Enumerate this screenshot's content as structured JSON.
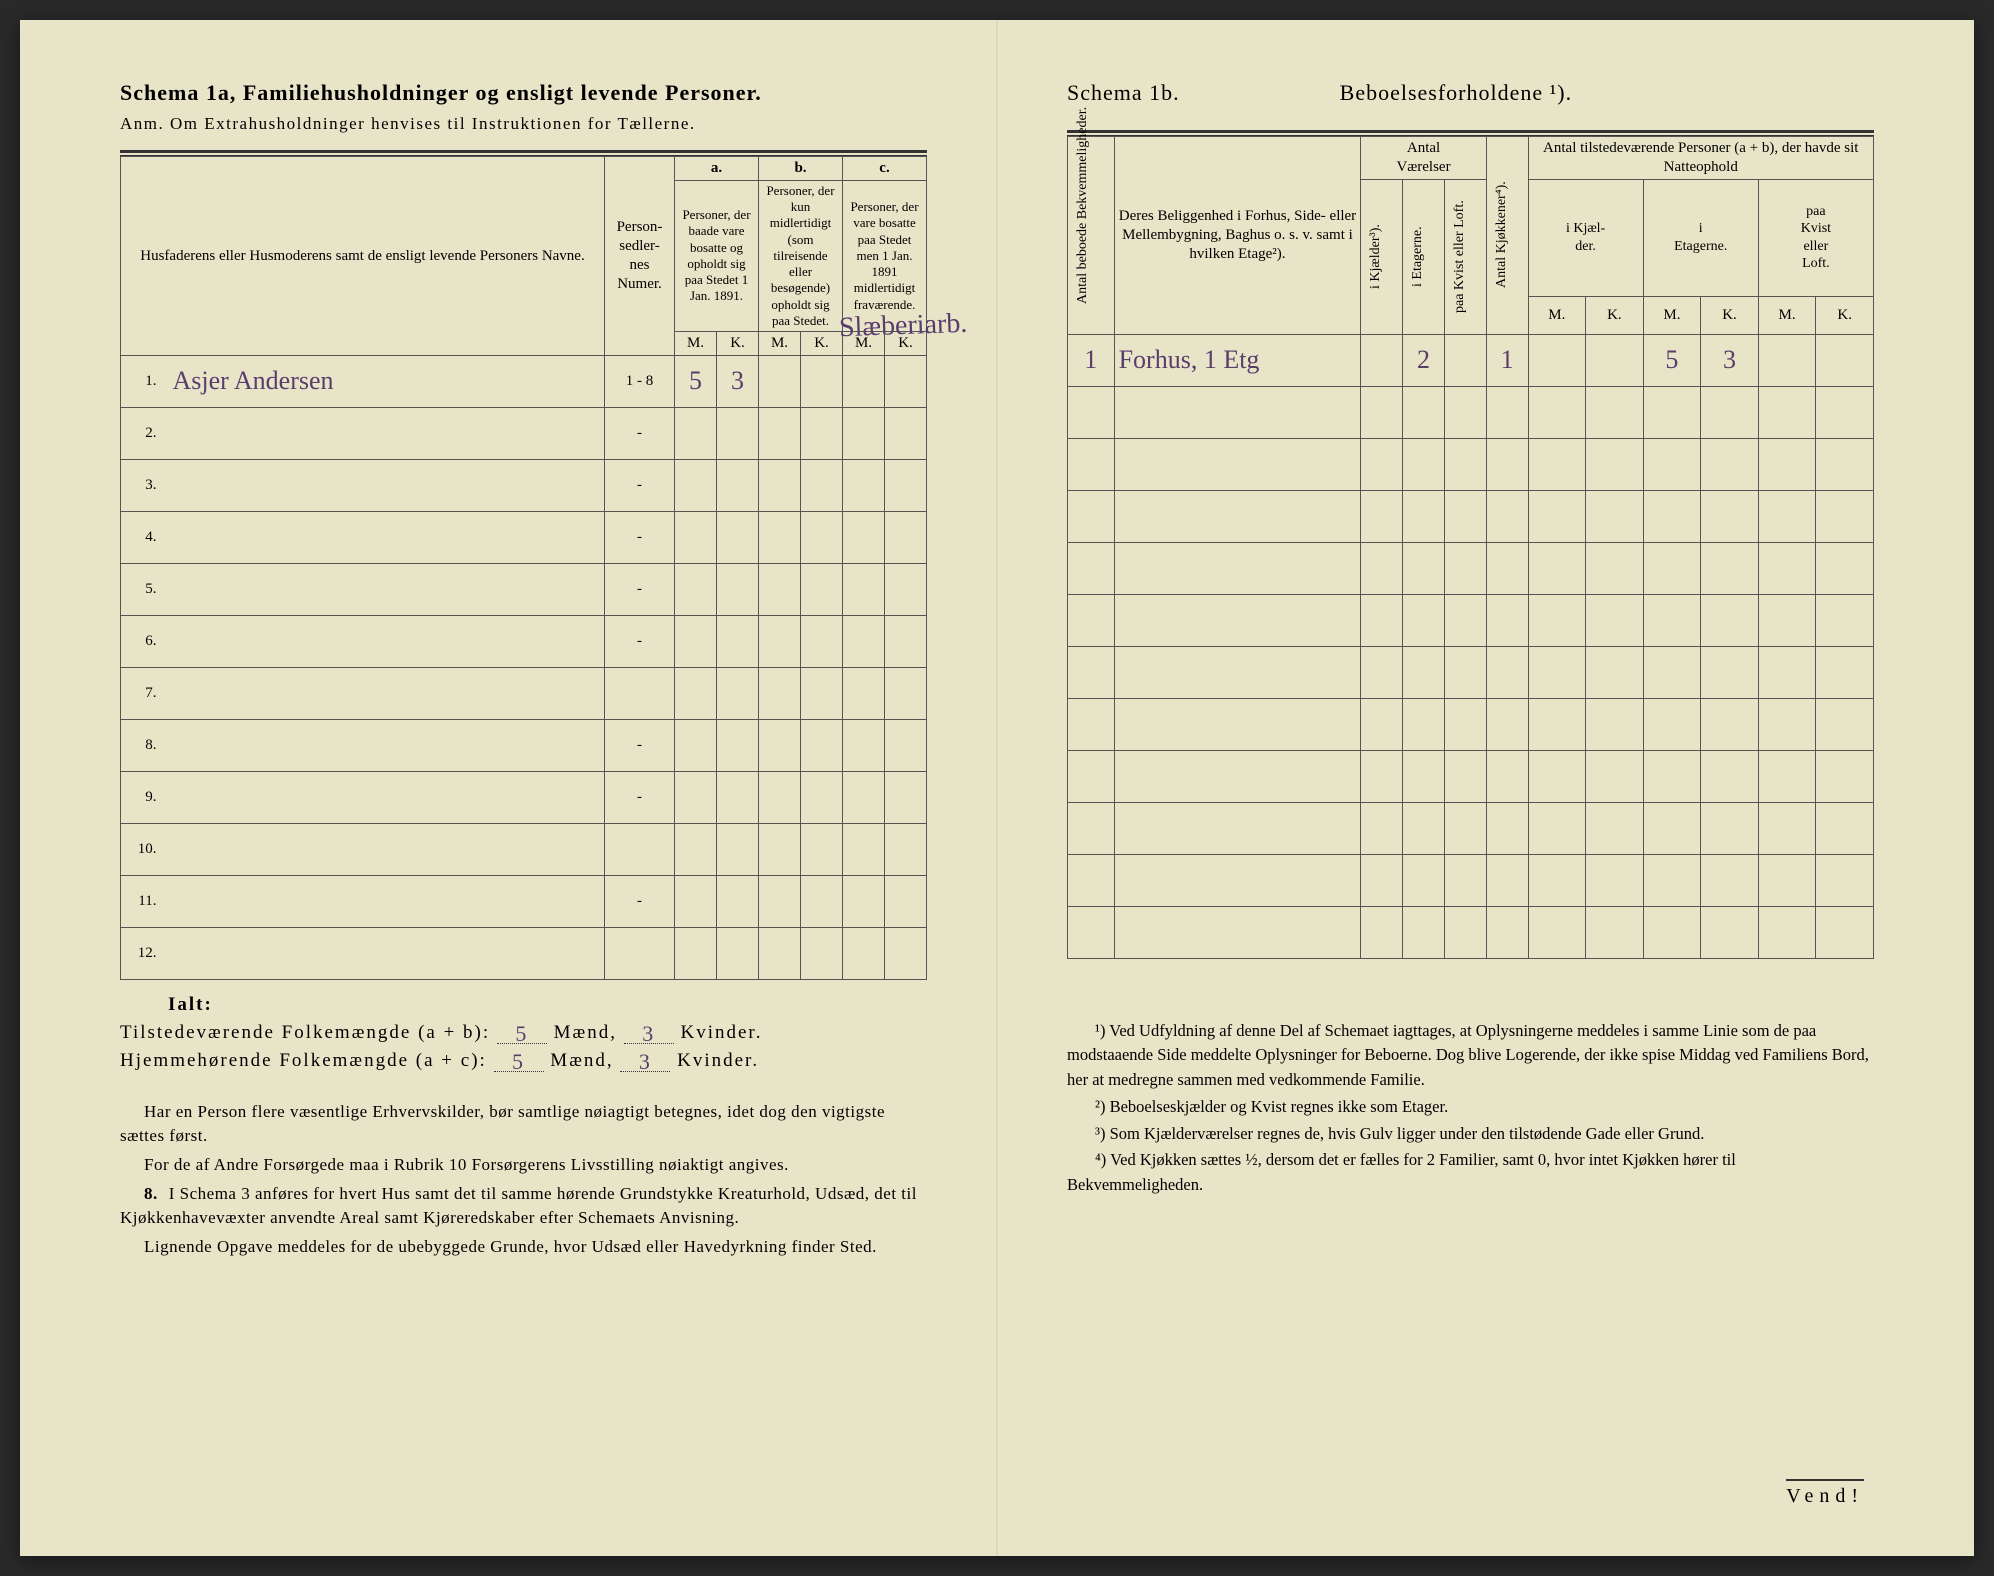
{
  "left": {
    "schema_label": "Schema 1a,",
    "schema_title": "Familiehusholdninger og ensligt levende Personer.",
    "subtitle": "Anm.  Om Extrahusholdninger henvises til Instruktionen for Tællerne.",
    "col_names": "Husfaderens eller Husmoderens samt de ensligt levende Personers Navne.",
    "col_personsedler": "Person-\nsedler-\nnes\nNumer.",
    "group_a": "a.",
    "group_b": "b.",
    "group_c": "c.",
    "col_a": "Personer, der baade vare bosatte og opholdt sig paa Stedet 1 Jan. 1891.",
    "col_b": "Personer, der kun midlertidigt (som tilreisende eller besøgende) opholdt sig paa Stedet.",
    "col_c": "Personer, der vare bosatte paa Stedet men 1 Jan. 1891 midlertidigt fraværende.",
    "m": "M.",
    "k": "K.",
    "rows": [
      {
        "n": "1.",
        "name": "Asjer Andersen",
        "sedler": "1 - 8",
        "am": "5",
        "ak": "3",
        "bm": "",
        "bk": "",
        "cm": "",
        "ck": ""
      },
      {
        "n": "2.",
        "name": "",
        "sedler": "-",
        "am": "",
        "ak": "",
        "bm": "",
        "bk": "",
        "cm": "",
        "ck": ""
      },
      {
        "n": "3.",
        "name": "",
        "sedler": "-",
        "am": "",
        "ak": "",
        "bm": "",
        "bk": "",
        "cm": "",
        "ck": ""
      },
      {
        "n": "4.",
        "name": "",
        "sedler": "-",
        "am": "",
        "ak": "",
        "bm": "",
        "bk": "",
        "cm": "",
        "ck": ""
      },
      {
        "n": "5.",
        "name": "",
        "sedler": "-",
        "am": "",
        "ak": "",
        "bm": "",
        "bk": "",
        "cm": "",
        "ck": ""
      },
      {
        "n": "6.",
        "name": "",
        "sedler": "-",
        "am": "",
        "ak": "",
        "bm": "",
        "bk": "",
        "cm": "",
        "ck": ""
      },
      {
        "n": "7.",
        "name": "",
        "sedler": "",
        "am": "",
        "ak": "",
        "bm": "",
        "bk": "",
        "cm": "",
        "ck": ""
      },
      {
        "n": "8.",
        "name": "",
        "sedler": "-",
        "am": "",
        "ak": "",
        "bm": "",
        "bk": "",
        "cm": "",
        "ck": ""
      },
      {
        "n": "9.",
        "name": "",
        "sedler": "-",
        "am": "",
        "ak": "",
        "bm": "",
        "bk": "",
        "cm": "",
        "ck": ""
      },
      {
        "n": "10.",
        "name": "",
        "sedler": "",
        "am": "",
        "ak": "",
        "bm": "",
        "bk": "",
        "cm": "",
        "ck": ""
      },
      {
        "n": "11.",
        "name": "",
        "sedler": "-",
        "am": "",
        "ak": "",
        "bm": "",
        "bk": "",
        "cm": "",
        "ck": ""
      },
      {
        "n": "12.",
        "name": "",
        "sedler": "",
        "am": "",
        "ak": "",
        "bm": "",
        "bk": "",
        "cm": "",
        "ck": ""
      }
    ],
    "marginal_note": "Slæberiarb.",
    "ialt": "Ialt:",
    "tilstede_label": "Tilstedeværende Folkemængde (a + b):",
    "hjemme_label": "Hjemmehørende Folkemængde (a + c):",
    "maend": "Mænd,",
    "kvinder": "Kvinder.",
    "tilstede_m": "5",
    "tilstede_k": "3",
    "tilstede_m2": "5",
    "tilstede_k2": "3",
    "notes_p1": "Har en Person flere væsentlige Erhvervskilder, bør samtlige nøiagtigt betegnes, idet dog den vigtigste sættes først.",
    "notes_p2": "For de af Andre Forsørgede maa i Rubrik 10 Forsørgerens Livsstilling nøiaktigt angives.",
    "notes_8": "I Schema 3 anføres for hvert Hus samt det til samme hørende Grundstykke Kreaturhold, Udsæd, det til Kjøkkenhavevæxter anvendte Areal samt Kjøreredskaber efter Schemaets Anvisning.",
    "notes_8b": "Lignende Opgave meddeles for de ubebyggede Grunde, hvor Udsæd eller Havedyrkning finder Sted."
  },
  "right": {
    "schema_label": "Schema 1b.",
    "schema_title": "Beboelsesforholdene ¹).",
    "col_antal_bekv": "Antal beboede\nBekvemmeligheder.",
    "col_beliggenhed": "Deres Beliggenhed i Forhus, Side- eller Mellembygning, Baghus o. s. v. samt i hvilken Etage²).",
    "grp_vaerelser": "Antal\nVærelser",
    "col_kjaelder": "i Kjælder³).",
    "col_etagerne": "i Etagerne.",
    "col_kvist": "paa Kvist eller\nLoft.",
    "col_kjokken": "Antal Kjøkkener⁴).",
    "grp_natteophold": "Antal tilstedeværende Personer (a + b), der havde sit Natteophold",
    "col_n_kjaelder": "i Kjæl-\nder.",
    "col_n_etagerne": "i\nEtagerne.",
    "col_n_kvist": "paa\nKvist\neller\nLoft.",
    "m": "M.",
    "k": "K.",
    "rows": [
      {
        "n": "1",
        "loc": "Forhus, 1 Etg",
        "kj": "",
        "et": "2",
        "kv": "",
        "kk": "1",
        "nkjm": "",
        "nkjk": "",
        "netm": "5",
        "netk": "3",
        "nkvm": "",
        "nkvk": ""
      },
      {
        "n": "",
        "loc": "",
        "kj": "",
        "et": "",
        "kv": "",
        "kk": "",
        "nkjm": "",
        "nkjk": "",
        "netm": "",
        "netk": "",
        "nkvm": "",
        "nkvk": ""
      },
      {
        "n": "",
        "loc": "",
        "kj": "",
        "et": "",
        "kv": "",
        "kk": "",
        "nkjm": "",
        "nkjk": "",
        "netm": "",
        "netk": "",
        "nkvm": "",
        "nkvk": ""
      },
      {
        "n": "",
        "loc": "",
        "kj": "",
        "et": "",
        "kv": "",
        "kk": "",
        "nkjm": "",
        "nkjk": "",
        "netm": "",
        "netk": "",
        "nkvm": "",
        "nkvk": ""
      },
      {
        "n": "",
        "loc": "",
        "kj": "",
        "et": "",
        "kv": "",
        "kk": "",
        "nkjm": "",
        "nkjk": "",
        "netm": "",
        "netk": "",
        "nkvm": "",
        "nkvk": ""
      },
      {
        "n": "",
        "loc": "",
        "kj": "",
        "et": "",
        "kv": "",
        "kk": "",
        "nkjm": "",
        "nkjk": "",
        "netm": "",
        "netk": "",
        "nkvm": "",
        "nkvk": ""
      },
      {
        "n": "",
        "loc": "",
        "kj": "",
        "et": "",
        "kv": "",
        "kk": "",
        "nkjm": "",
        "nkjk": "",
        "netm": "",
        "netk": "",
        "nkvm": "",
        "nkvk": ""
      },
      {
        "n": "",
        "loc": "",
        "kj": "",
        "et": "",
        "kv": "",
        "kk": "",
        "nkjm": "",
        "nkjk": "",
        "netm": "",
        "netk": "",
        "nkvm": "",
        "nkvk": ""
      },
      {
        "n": "",
        "loc": "",
        "kj": "",
        "et": "",
        "kv": "",
        "kk": "",
        "nkjm": "",
        "nkjk": "",
        "netm": "",
        "netk": "",
        "nkvm": "",
        "nkvk": ""
      },
      {
        "n": "",
        "loc": "",
        "kj": "",
        "et": "",
        "kv": "",
        "kk": "",
        "nkjm": "",
        "nkjk": "",
        "netm": "",
        "netk": "",
        "nkvm": "",
        "nkvk": ""
      },
      {
        "n": "",
        "loc": "",
        "kj": "",
        "et": "",
        "kv": "",
        "kk": "",
        "nkjm": "",
        "nkjk": "",
        "netm": "",
        "netk": "",
        "nkvm": "",
        "nkvk": ""
      },
      {
        "n": "",
        "loc": "",
        "kj": "",
        "et": "",
        "kv": "",
        "kk": "",
        "nkjm": "",
        "nkjk": "",
        "netm": "",
        "netk": "",
        "nkvm": "",
        "nkvk": ""
      }
    ],
    "fn1": "¹) Ved Udfyldning af denne Del af Schemaet iagttages, at Oplysningerne meddeles i samme Linie som de paa modstaaende Side meddelte Oplysninger for Beboerne. Dog blive Logerende, der ikke spise Middag ved Familiens Bord, her at medregne sammen med vedkommende Familie.",
    "fn2": "²) Beboelseskjælder og Kvist regnes ikke som Etager.",
    "fn3": "³) Som Kjælderværelser regnes de, hvis Gulv ligger under den tilstødende Gade eller Grund.",
    "fn4": "⁴) Ved Kjøkken sættes ½, dersom det er fælles for 2 Familier, samt 0, hvor intet Kjøkken hører til Bekvemmeligheden.",
    "vend": "Vend!"
  },
  "colors": {
    "paper": "#e8e4c8",
    "ink": "#333333",
    "handwriting": "#5a3d6b"
  }
}
